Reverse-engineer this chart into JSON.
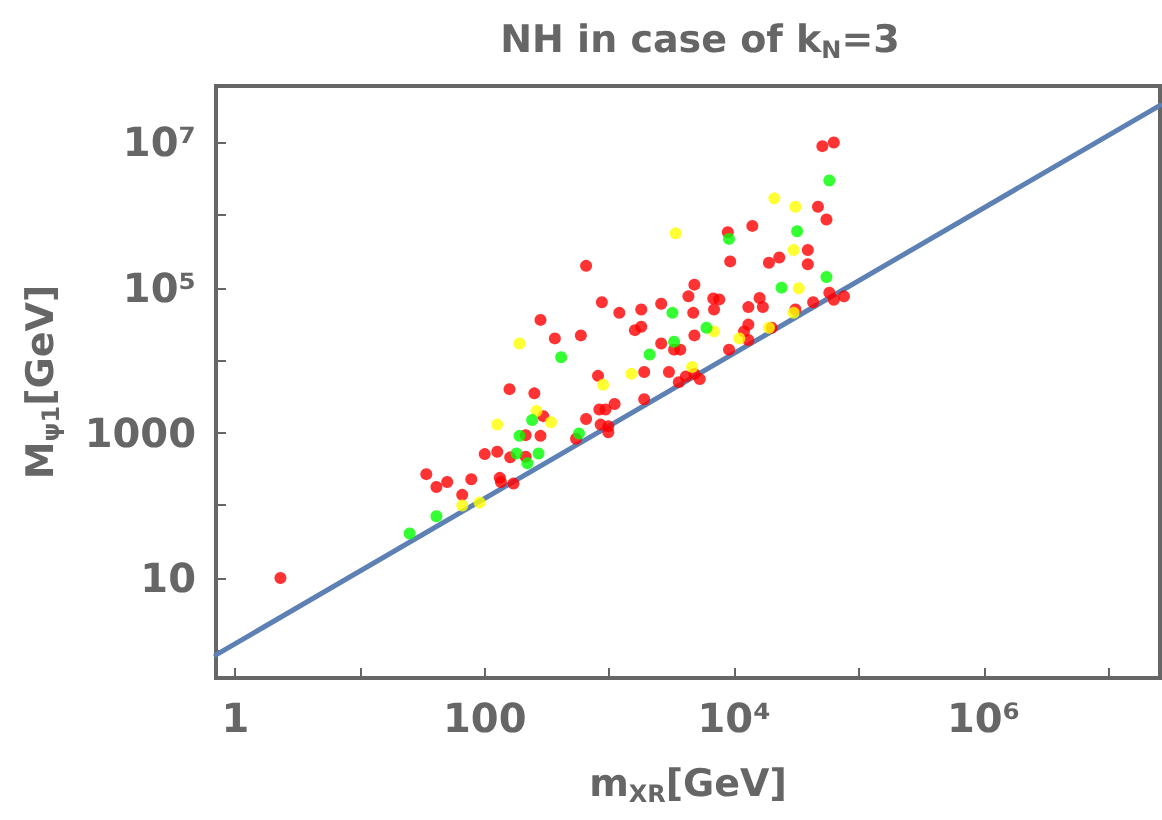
{
  "chart_data": {
    "type": "scatter",
    "title": "NH in case of k$_{N}$=3",
    "xlabel": "m$_{XR}$[GeV]",
    "ylabel": "M$_{ψ1}$[GeV]",
    "log": "xy",
    "grid": false,
    "marker": "circle",
    "xlim": [
      0.7,
      26000000.0
    ],
    "ylim": [
      0.42,
      60000000.0
    ],
    "xticks": [
      1,
      {
        "value": 10,
        "label": null
      },
      100,
      {
        "value": 1000,
        "label": null
      },
      {
        "value": 10000,
        "label": "10⁴"
      },
      {
        "value": 100000,
        "label": null
      },
      {
        "value": 1000000,
        "label": "10⁶"
      },
      {
        "value": 10000000,
        "label": null
      }
    ],
    "yticks": [
      {
        "value": 1,
        "label": null
      },
      10,
      {
        "value": 100,
        "label": null
      },
      1000,
      {
        "value": 10000,
        "label": null
      },
      {
        "value": 100000,
        "label": "10⁵"
      },
      {
        "value": 1000000,
        "label": null
      },
      {
        "value": 10000000,
        "label": "10⁷"
      }
    ],
    "series": [
      {
        "type": "line",
        "marker": "none",
        "color": "#5e81b5",
        "x": [
          0.7,
          26000000.0
        ],
        "values": [
          0.875,
          32500000.0
        ]
      },
      {
        "color": "#ff0000",
        "x": [
          2.3,
          34,
          41,
          50,
          66,
          78,
          100,
          126,
          132,
          135,
          170,
          160,
          158,
          213,
          213,
          250,
          280,
          295,
          280,
          365,
          540,
          590,
          650,
          650,
          810,
          870,
          830,
          930,
          850,
          980,
          980,
          1100,
          1200,
          1600,
          1800,
          1800,
          1900,
          1900,
          2600,
          2600,
          3000,
          3300,
          3700,
          3600,
          4100,
          4300,
          4800,
          4700,
          4800,
          4800,
          5300,
          6800,
          6900,
          7600,
          8900,
          9300,
          9100,
          12000,
          13000,
          13000,
          13000,
          14000,
          16000,
          17000,
          19000,
          20000,
          23000,
          31000,
          39000,
          39000,
          43000,
          47000,
          51000,
          55000,
          58000,
          63000,
          63000,
          76000
        ],
        "values": [
          10,
          270,
          180,
          210,
          140,
          230,
          510,
          550,
          240,
          210,
          200,
          460,
          4000,
          930,
          470,
          3500,
          36000,
          1700,
          910,
          20000,
          830,
          22000,
          200000,
          1550,
          6100,
          63000,
          2100,
          2100,
          1300,
          1230,
          1020,
          2500,
          45000,
          26000,
          50000,
          29000,
          6900,
          2900,
          60000,
          17000,
          6900,
          14000,
          14000,
          5000,
          6000,
          76000,
          110000,
          45000,
          22000,
          6500,
          5500,
          71000,
          50000,
          69000,
          580000,
          230000,
          14000,
          25000,
          54000,
          31000,
          19000,
          710000,
          72000,
          54000,
          220000,
          28000,
          260000,
          50000,
          330000,
          210000,
          63000,
          1300000,
          8900000,
          870000,
          85000,
          10000000,
          68000,
          76000
        ]
      },
      {
        "color": "#ffff00",
        "x": [
          66,
          91,
          126,
          190,
          260,
          340,
          890,
          1500,
          3400,
          4600,
          6900,
          11000,
          19000,
          21000,
          31000,
          30000,
          33000,
          30000
        ],
        "values": [
          100,
          110,
          1300,
          17000,
          2000,
          1400,
          4600,
          6500,
          560000,
          8100,
          25000,
          20000,
          28000,
          1700000,
          1300000,
          330000,
          98000,
          45000
        ]
      },
      {
        "color": "#00ff00",
        "x": [
          25,
          41,
          180,
          190,
          220,
          240,
          270,
          410,
          570,
          2100,
          3200,
          3300,
          6000,
          9100,
          24000,
          32000,
          55000,
          58000
        ],
        "values": [
          41,
          71,
          520,
          910,
          380,
          1500,
          520,
          11000,
          980,
          12000,
          45000,
          18000,
          28000,
          470000,
          100000,
          600000,
          140000,
          3000000
        ]
      }
    ]
  }
}
